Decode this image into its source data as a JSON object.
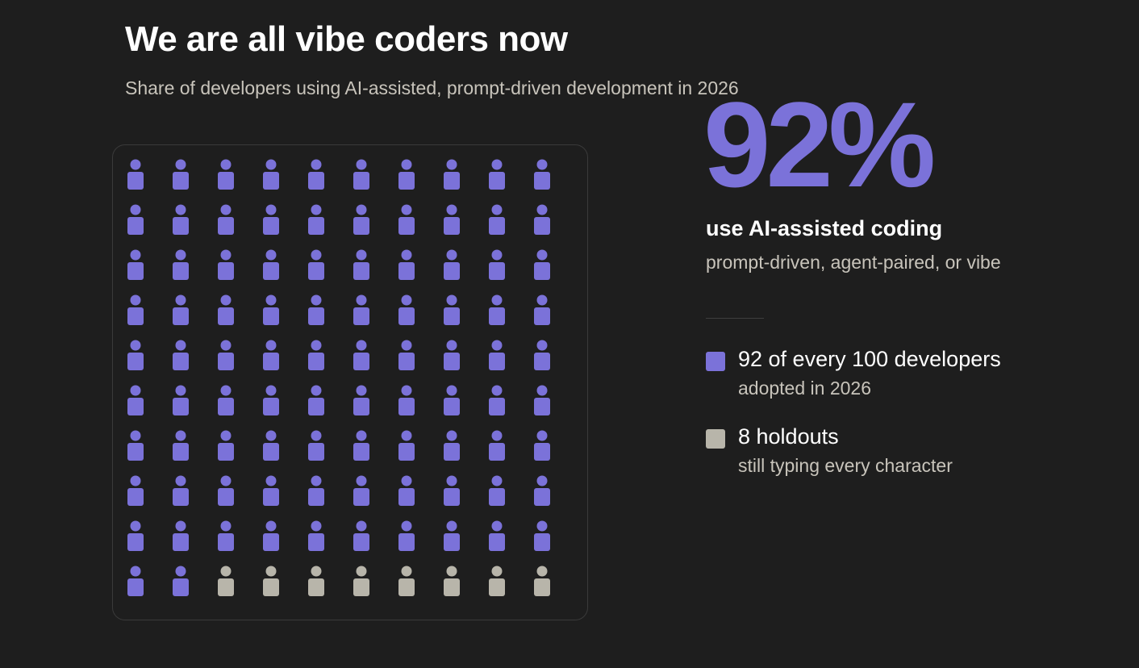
{
  "header": {
    "title": "We are all vibe coders now",
    "subtitle": "Share of developers using AI-assisted, prompt-driven development in 2026"
  },
  "stat": {
    "value": "92%",
    "headline": "use AI-assisted coding",
    "subline": "prompt-driven, agent-paired, or vibe"
  },
  "legend": [
    {
      "label": "92 of every 100 developers",
      "desc": "adopted in 2026",
      "color": "#7b72d9"
    },
    {
      "label": "8 holdouts",
      "desc": "still typing every character",
      "color": "#b8b5aa"
    }
  ],
  "colors": {
    "adopted": "#7b72d9",
    "holdout": "#b8b5aa",
    "background": "#1e1e1e"
  },
  "chart_data": {
    "type": "waffle",
    "total": 100,
    "rows": 10,
    "columns": 10,
    "icon": "person-icon",
    "series": [
      {
        "name": "92 of every 100 developers",
        "value": 92,
        "color": "#7b72d9"
      },
      {
        "name": "8 holdouts",
        "value": 8,
        "color": "#b8b5aa"
      }
    ]
  }
}
